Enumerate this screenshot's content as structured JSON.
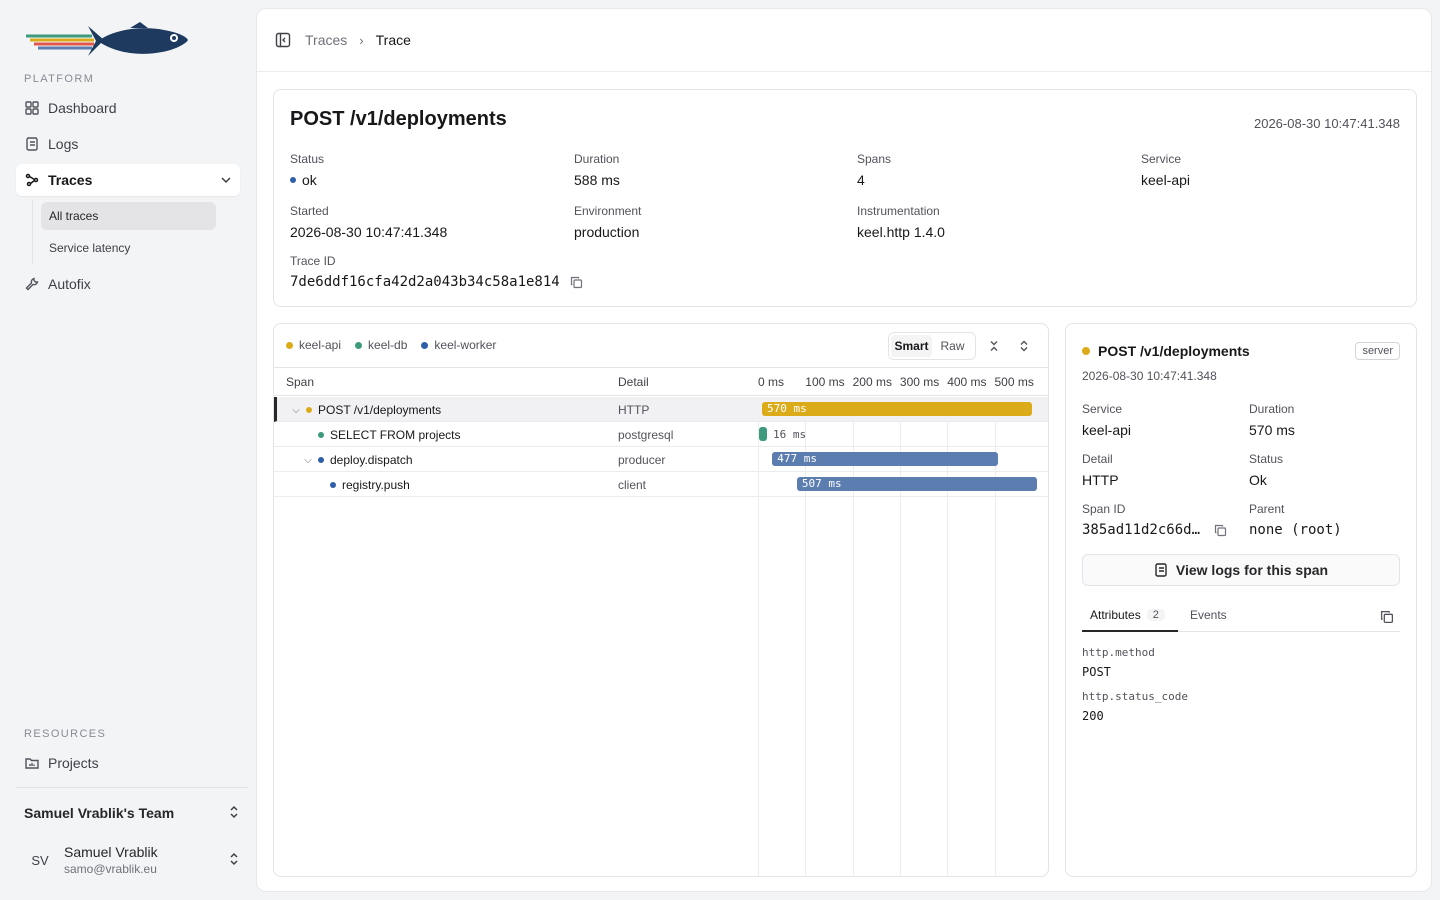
{
  "sidebar": {
    "platform_label": "PLATFORM",
    "resources_label": "RESOURCES",
    "nav": {
      "dashboard": "Dashboard",
      "logs": "Logs",
      "traces": "Traces",
      "all_traces": "All traces",
      "service_latency": "Service latency",
      "autofix": "Autofix",
      "projects": "Projects"
    },
    "team": "Samuel Vrablik's Team",
    "user": {
      "initials": "SV",
      "name": "Samuel Vrablik",
      "email": "samo@vrablik.eu"
    }
  },
  "breadcrumb": {
    "parent": "Traces",
    "sep": "›",
    "current": "Trace"
  },
  "summary": {
    "title": "POST /v1/deployments",
    "timestamp": "2026-08-30 10:47:41.348",
    "labels": {
      "status": "Status",
      "duration": "Duration",
      "spans": "Spans",
      "service": "Service",
      "started": "Started",
      "environment": "Environment",
      "instrumentation": "Instrumentation",
      "trace_id": "Trace ID"
    },
    "values": {
      "status": "ok",
      "duration": "588 ms",
      "spans": "4",
      "service": "keel-api",
      "started": "2026-08-30 10:47:41.348",
      "environment": "production",
      "instrumentation": "keel.http 1.4.0",
      "trace_id": "7de6ddf16cfa42d2a043b34c58a1e814"
    }
  },
  "waterfall": {
    "legend": [
      "keel-api",
      "keel-db",
      "keel-worker"
    ],
    "toggle": {
      "smart": "Smart",
      "raw": "Raw"
    },
    "columns": {
      "span": "Span",
      "detail": "Detail"
    },
    "ticks": [
      "0 ms",
      "100 ms",
      "200 ms",
      "300 ms",
      "400 ms",
      "500 ms"
    ],
    "rows": [
      {
        "name": "POST /v1/deployments",
        "detail": "HTTP",
        "duration": "570 ms",
        "start_ms": 0,
        "duration_ms": 570,
        "service": "keel-api"
      },
      {
        "name": "SELECT FROM projects",
        "detail": "postgresql",
        "duration": "16 ms",
        "start_ms": 0,
        "duration_ms": 16,
        "service": "keel-db"
      },
      {
        "name": "deploy.dispatch",
        "detail": "producer",
        "duration": "477 ms",
        "start_ms": 28,
        "duration_ms": 477,
        "service": "keel-worker"
      },
      {
        "name": "registry.push",
        "detail": "client",
        "duration": "507 ms",
        "start_ms": 80,
        "duration_ms": 507,
        "service": "keel-worker"
      }
    ]
  },
  "detail": {
    "title": "POST /v1/deployments",
    "kind": "server",
    "timestamp": "2026-08-30 10:47:41.348",
    "labels": {
      "service": "Service",
      "duration": "Duration",
      "detail": "Detail",
      "status": "Status",
      "span_id": "Span ID",
      "parent": "Parent"
    },
    "values": {
      "service": "keel-api",
      "duration": "570 ms",
      "detail": "HTTP",
      "status": "Ok",
      "span_id": "385ad11d2c66d…",
      "parent": "none (root)"
    },
    "view_logs": "View logs for this span",
    "tabs": {
      "attributes": "Attributes",
      "attributes_count": "2",
      "events": "Events"
    },
    "attributes": [
      {
        "key": "http.method",
        "value": "POST"
      },
      {
        "key": "http.status_code",
        "value": "200"
      }
    ]
  },
  "colors": {
    "keel-api": "#dcab1a",
    "keel-db": "#3d9a7d",
    "keel-worker": "#5b7db0",
    "status-ok": "#2f5fa8"
  }
}
